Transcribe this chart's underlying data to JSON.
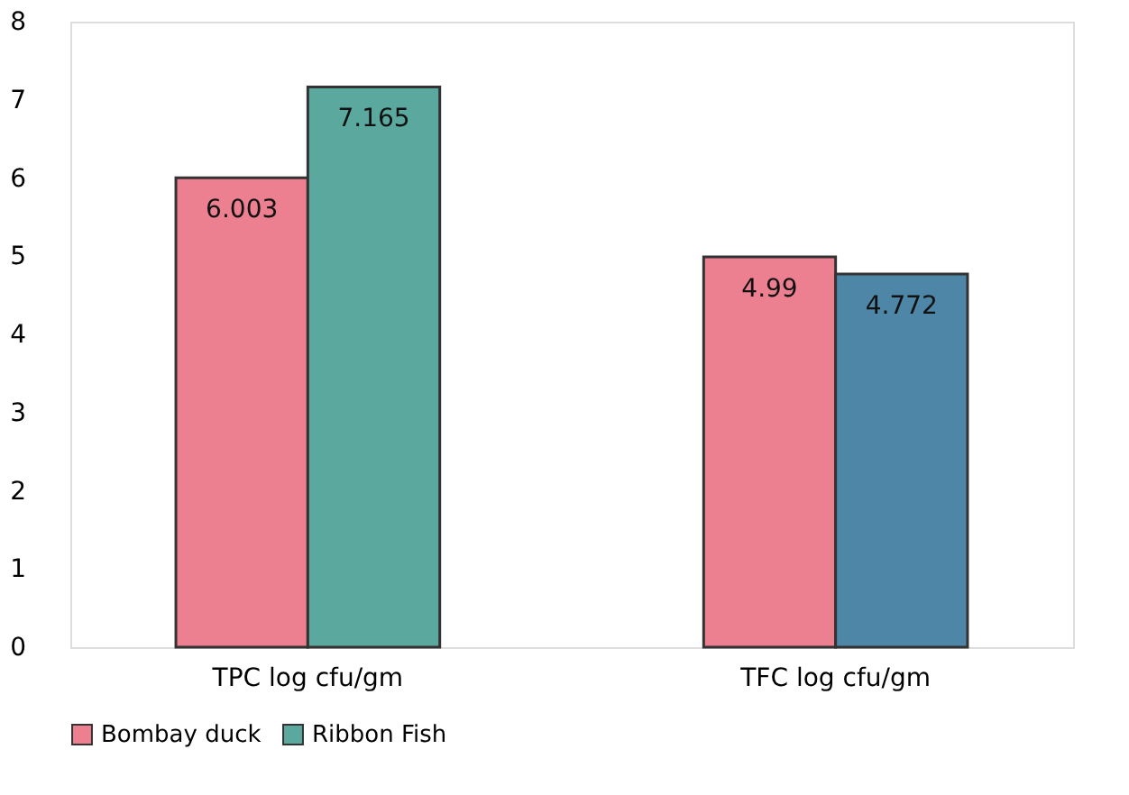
{
  "chart_data": {
    "type": "bar",
    "categories": [
      "TPC log cfu/gm",
      "TFC log cfu/gm"
    ],
    "series": [
      {
        "name": "Bombay duck",
        "color": "#ec7f90",
        "values": [
          6.003,
          4.99
        ]
      },
      {
        "name": "Ribbon Fish",
        "color": "#5aa89e",
        "colors": [
          "#5aa89e",
          "#4d86a6"
        ],
        "values": [
          7.165,
          4.772
        ]
      }
    ],
    "ylim": [
      0,
      8
    ],
    "yticks": [
      0,
      1,
      2,
      3,
      4,
      5,
      6,
      7,
      8
    ],
    "grid": false,
    "legend": "bottom",
    "data_labels": true
  }
}
